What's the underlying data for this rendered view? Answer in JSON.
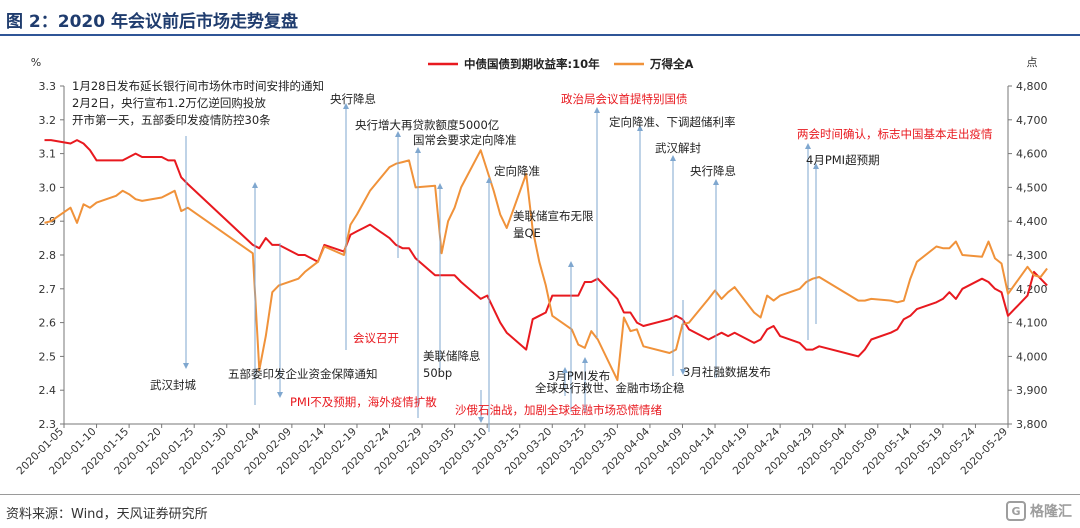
{
  "figure": {
    "title": "图 2：2020 年会议前后市场走势复盘",
    "source": "资料来源：Wind，天风证券研究所",
    "watermark": "格隆汇"
  },
  "colors": {
    "title": "#1f3c6e",
    "series_yield": "#e8191f",
    "series_wind": "#f0923a",
    "annotation_arrow": "#7fa7cf",
    "annotation_red": "#e8191f",
    "annotation_black": "#222222"
  },
  "chart_data": {
    "type": "line",
    "left_axis": {
      "unit": "%",
      "min": 2.3,
      "max": 3.3,
      "ticks": [
        "2.3",
        "2.4",
        "2.5",
        "2.6",
        "2.7",
        "2.8",
        "2.9",
        "3.0",
        "3.1",
        "3.2",
        "3.3"
      ]
    },
    "right_axis": {
      "unit": "点",
      "min": 3800,
      "max": 4800,
      "ticks": [
        "3,800",
        "3,900",
        "4,000",
        "4,100",
        "4,200",
        "4,300",
        "4,400",
        "4,500",
        "4,600",
        "4,700",
        "4,800"
      ]
    },
    "x_axis": {
      "start": "2020-01-05",
      "end": "2020-05-29",
      "ticks": [
        "2020-01-05",
        "2020-01-10",
        "2020-01-15",
        "2020-01-20",
        "2020-01-25",
        "2020-01-30",
        "2020-02-04",
        "2020-02-09",
        "2020-02-14",
        "2020-02-19",
        "2020-02-24",
        "2020-02-29",
        "2020-03-05",
        "2020-03-10",
        "2020-03-15",
        "2020-03-20",
        "2020-03-25",
        "2020-03-30",
        "2020-04-04",
        "2020-04-09",
        "2020-04-14",
        "2020-04-19",
        "2020-04-24",
        "2020-04-29",
        "2020-05-04",
        "2020-05-09",
        "2020-05-14",
        "2020-05-19",
        "2020-05-24",
        "2020-05-29"
      ]
    },
    "legend": "top-center",
    "series": [
      {
        "name": "中债国债到期收益率:10年",
        "axis": "left",
        "color": "#e8191f",
        "points": [
          [
            "2020-01-02",
            3.14
          ],
          [
            "2020-01-03",
            3.14
          ],
          [
            "2020-01-06",
            3.13
          ],
          [
            "2020-01-07",
            3.14
          ],
          [
            "2020-01-08",
            3.13
          ],
          [
            "2020-01-09",
            3.11
          ],
          [
            "2020-01-10",
            3.08
          ],
          [
            "2020-01-13",
            3.08
          ],
          [
            "2020-01-14",
            3.08
          ],
          [
            "2020-01-15",
            3.09
          ],
          [
            "2020-01-16",
            3.1
          ],
          [
            "2020-01-17",
            3.09
          ],
          [
            "2020-01-20",
            3.09
          ],
          [
            "2020-01-21",
            3.08
          ],
          [
            "2020-01-22",
            3.08
          ],
          [
            "2020-01-23",
            3.03
          ],
          [
            "2020-01-24",
            3.01
          ],
          [
            "2020-02-03",
            2.83
          ],
          [
            "2020-02-04",
            2.82
          ],
          [
            "2020-02-05",
            2.85
          ],
          [
            "2020-02-06",
            2.83
          ],
          [
            "2020-02-07",
            2.83
          ],
          [
            "2020-02-10",
            2.8
          ],
          [
            "2020-02-11",
            2.8
          ],
          [
            "2020-02-12",
            2.79
          ],
          [
            "2020-02-13",
            2.78
          ],
          [
            "2020-02-14",
            2.83
          ],
          [
            "2020-02-17",
            2.81
          ],
          [
            "2020-02-18",
            2.86
          ],
          [
            "2020-02-19",
            2.87
          ],
          [
            "2020-02-20",
            2.88
          ],
          [
            "2020-02-21",
            2.89
          ],
          [
            "2020-02-24",
            2.85
          ],
          [
            "2020-02-25",
            2.83
          ],
          [
            "2020-02-26",
            2.82
          ],
          [
            "2020-02-27",
            2.82
          ],
          [
            "2020-02-28",
            2.79
          ],
          [
            "2020-03-02",
            2.74
          ],
          [
            "2020-03-03",
            2.74
          ],
          [
            "2020-03-04",
            2.74
          ],
          [
            "2020-03-05",
            2.74
          ],
          [
            "2020-03-06",
            2.72
          ],
          [
            "2020-03-09",
            2.67
          ],
          [
            "2020-03-10",
            2.68
          ],
          [
            "2020-03-11",
            2.64
          ],
          [
            "2020-03-12",
            2.6
          ],
          [
            "2020-03-13",
            2.57
          ],
          [
            "2020-03-16",
            2.52
          ],
          [
            "2020-03-17",
            2.61
          ],
          [
            "2020-03-18",
            2.62
          ],
          [
            "2020-03-19",
            2.63
          ],
          [
            "2020-03-20",
            2.68
          ],
          [
            "2020-03-23",
            2.68
          ],
          [
            "2020-03-24",
            2.68
          ],
          [
            "2020-03-25",
            2.72
          ],
          [
            "2020-03-26",
            2.72
          ],
          [
            "2020-03-27",
            2.73
          ],
          [
            "2020-03-30",
            2.67
          ],
          [
            "2020-03-31",
            2.63
          ],
          [
            "2020-04-01",
            2.63
          ],
          [
            "2020-04-02",
            2.6
          ],
          [
            "2020-04-03",
            2.59
          ],
          [
            "2020-04-07",
            2.61
          ],
          [
            "2020-04-08",
            2.62
          ],
          [
            "2020-04-09",
            2.61
          ],
          [
            "2020-04-10",
            2.58
          ],
          [
            "2020-04-13",
            2.55
          ],
          [
            "2020-04-14",
            2.56
          ],
          [
            "2020-04-15",
            2.57
          ],
          [
            "2020-04-16",
            2.56
          ],
          [
            "2020-04-17",
            2.57
          ],
          [
            "2020-04-20",
            2.54
          ],
          [
            "2020-04-21",
            2.55
          ],
          [
            "2020-04-22",
            2.58
          ],
          [
            "2020-04-23",
            2.59
          ],
          [
            "2020-04-24",
            2.56
          ],
          [
            "2020-04-27",
            2.54
          ],
          [
            "2020-04-28",
            2.52
          ],
          [
            "2020-04-29",
            2.52
          ],
          [
            "2020-04-30",
            2.53
          ],
          [
            "2020-05-06",
            2.5
          ],
          [
            "2020-05-07",
            2.52
          ],
          [
            "2020-05-08",
            2.55
          ],
          [
            "2020-05-11",
            2.57
          ],
          [
            "2020-05-12",
            2.58
          ],
          [
            "2020-05-13",
            2.61
          ],
          [
            "2020-05-14",
            2.62
          ],
          [
            "2020-05-15",
            2.64
          ],
          [
            "2020-05-18",
            2.66
          ],
          [
            "2020-05-19",
            2.67
          ],
          [
            "2020-05-20",
            2.69
          ],
          [
            "2020-05-21",
            2.67
          ],
          [
            "2020-05-22",
            2.7
          ],
          [
            "2020-05-25",
            2.73
          ],
          [
            "2020-05-26",
            2.72
          ],
          [
            "2020-05-27",
            2.7
          ],
          [
            "2020-05-28",
            2.69
          ],
          [
            "2020-05-29",
            2.62
          ],
          [
            "2020-06-01",
            2.68
          ],
          [
            "2020-06-02",
            2.75
          ],
          [
            "2020-06-03",
            2.73
          ],
          [
            "2020-06-04",
            2.71
          ]
        ]
      },
      {
        "name": "万得全A",
        "axis": "right",
        "color": "#f0923a",
        "points": [
          [
            "2020-01-02",
            4395
          ],
          [
            "2020-01-03",
            4400
          ],
          [
            "2020-01-06",
            4440
          ],
          [
            "2020-01-07",
            4395
          ],
          [
            "2020-01-08",
            4450
          ],
          [
            "2020-01-09",
            4440
          ],
          [
            "2020-01-10",
            4455
          ],
          [
            "2020-01-13",
            4475
          ],
          [
            "2020-01-14",
            4490
          ],
          [
            "2020-01-15",
            4480
          ],
          [
            "2020-01-16",
            4465
          ],
          [
            "2020-01-17",
            4460
          ],
          [
            "2020-01-20",
            4470
          ],
          [
            "2020-01-21",
            4480
          ],
          [
            "2020-01-22",
            4490
          ],
          [
            "2020-01-23",
            4430
          ],
          [
            "2020-01-24",
            4440
          ],
          [
            "2020-02-03",
            4305
          ],
          [
            "2020-02-04",
            3960
          ],
          [
            "2020-02-05",
            4060
          ],
          [
            "2020-02-06",
            4190
          ],
          [
            "2020-02-07",
            4210
          ],
          [
            "2020-02-10",
            4230
          ],
          [
            "2020-02-11",
            4250
          ],
          [
            "2020-02-12",
            4265
          ],
          [
            "2020-02-13",
            4280
          ],
          [
            "2020-02-14",
            4325
          ],
          [
            "2020-02-17",
            4300
          ],
          [
            "2020-02-18",
            4390
          ],
          [
            "2020-02-19",
            4420
          ],
          [
            "2020-02-20",
            4455
          ],
          [
            "2020-02-21",
            4490
          ],
          [
            "2020-02-24",
            4560
          ],
          [
            "2020-02-25",
            4570
          ],
          [
            "2020-02-26",
            4575
          ],
          [
            "2020-02-27",
            4580
          ],
          [
            "2020-02-28",
            4500
          ],
          [
            "2020-03-02",
            4505
          ],
          [
            "2020-03-03",
            4305
          ],
          [
            "2020-03-04",
            4400
          ],
          [
            "2020-03-05",
            4440
          ],
          [
            "2020-03-06",
            4500
          ],
          [
            "2020-03-09",
            4610
          ],
          [
            "2020-03-10",
            4550
          ],
          [
            "2020-03-11",
            4490
          ],
          [
            "2020-03-12",
            4420
          ],
          [
            "2020-03-13",
            4380
          ],
          [
            "2020-03-16",
            4540
          ],
          [
            "2020-03-17",
            4375
          ],
          [
            "2020-03-18",
            4280
          ],
          [
            "2020-03-19",
            4210
          ],
          [
            "2020-03-20",
            4120
          ],
          [
            "2020-03-23",
            4080
          ],
          [
            "2020-03-24",
            4035
          ],
          [
            "2020-03-25",
            4025
          ],
          [
            "2020-03-26",
            4075
          ],
          [
            "2020-03-27",
            4050
          ],
          [
            "2020-03-30",
            3930
          ],
          [
            "2020-03-31",
            4115
          ],
          [
            "2020-04-01",
            4075
          ],
          [
            "2020-04-02",
            4080
          ],
          [
            "2020-04-03",
            4030
          ],
          [
            "2020-04-07",
            4010
          ],
          [
            "2020-04-08",
            4020
          ],
          [
            "2020-04-09",
            4095
          ],
          [
            "2020-04-10",
            4100
          ],
          [
            "2020-04-13",
            4170
          ],
          [
            "2020-04-14",
            4195
          ],
          [
            "2020-04-15",
            4170
          ],
          [
            "2020-04-16",
            4190
          ],
          [
            "2020-04-17",
            4205
          ],
          [
            "2020-04-20",
            4130
          ],
          [
            "2020-04-21",
            4115
          ],
          [
            "2020-04-22",
            4180
          ],
          [
            "2020-04-23",
            4165
          ],
          [
            "2020-04-24",
            4180
          ],
          [
            "2020-04-27",
            4200
          ],
          [
            "2020-04-28",
            4220
          ],
          [
            "2020-04-29",
            4230
          ],
          [
            "2020-04-30",
            4235
          ],
          [
            "2020-05-06",
            4165
          ],
          [
            "2020-05-07",
            4165
          ],
          [
            "2020-05-08",
            4170
          ],
          [
            "2020-05-11",
            4165
          ],
          [
            "2020-05-12",
            4160
          ],
          [
            "2020-05-13",
            4165
          ],
          [
            "2020-05-14",
            4230
          ],
          [
            "2020-05-15",
            4280
          ],
          [
            "2020-05-18",
            4325
          ],
          [
            "2020-05-19",
            4320
          ],
          [
            "2020-05-20",
            4320
          ],
          [
            "2020-05-21",
            4340
          ],
          [
            "2020-05-22",
            4300
          ],
          [
            "2020-05-25",
            4295
          ],
          [
            "2020-05-26",
            4340
          ],
          [
            "2020-05-27",
            4290
          ],
          [
            "2020-05-28",
            4275
          ],
          [
            "2020-05-29",
            4185
          ],
          [
            "2020-06-01",
            4265
          ],
          [
            "2020-06-02",
            4240
          ],
          [
            "2020-06-03",
            4235
          ],
          [
            "2020-06-04",
            4260
          ]
        ]
      }
    ],
    "annotations": [
      {
        "lines": [
          "1月28日发布延长银行间市场休市时间安排的通知",
          "2月2日，央行宣布1.2万亿逆回购投放",
          "开市第一天，五部委印发疫情防控30条"
        ],
        "color": "black",
        "anchor": "top",
        "date": "2020-02-04"
      },
      {
        "lines": [
          "武汉封城"
        ],
        "color": "black",
        "anchor": "bottom",
        "date": "2020-01-23"
      },
      {
        "lines": [
          "五部委印发企业资金保障通知"
        ],
        "color": "black",
        "anchor": "bottom",
        "date": "2020-02-08"
      },
      {
        "lines": [
          "央行降息"
        ],
        "color": "black",
        "anchor": "top",
        "date": "2020-02-20"
      },
      {
        "lines": [
          "央行增大再贷款额度5000亿"
        ],
        "color": "black",
        "anchor": "top",
        "date": "2020-02-26"
      },
      {
        "lines": [
          "国常会要求定向降准"
        ],
        "color": "black",
        "anchor": "top",
        "date": "2020-03-02"
      },
      {
        "lines": [
          "会议召开"
        ],
        "color": "red",
        "anchor": "middle",
        "date": "2020-02-29"
      },
      {
        "lines": [
          "PMI不及预期，海外疫情扩散"
        ],
        "color": "red",
        "anchor": "bottom",
        "date": "2020-03-01"
      },
      {
        "lines": [
          "美联储降息",
          "50bp"
        ],
        "color": "black",
        "anchor": "bottom",
        "date": "2020-03-03"
      },
      {
        "lines": [
          "定向降准"
        ],
        "color": "black",
        "anchor": "top",
        "date": "2020-03-13"
      },
      {
        "lines": [
          "美联储宣布无限",
          "量QE"
        ],
        "color": "black",
        "anchor": "top",
        "date": "2020-03-23"
      },
      {
        "lines": [
          "沙俄石油战，加剧全球金融市场恐慌情绪"
        ],
        "color": "red",
        "anchor": "bottom",
        "date": "2020-03-09"
      },
      {
        "lines": [
          "3月PMI发布"
        ],
        "color": "black",
        "anchor": "bottom",
        "date": "2020-03-31"
      },
      {
        "lines": [
          "全球央行救世、金融市场企稳"
        ],
        "color": "black",
        "anchor": "bottom",
        "date": "2020-03-24"
      },
      {
        "lines": [
          "政治局会议首提特别国债"
        ],
        "color": "red",
        "anchor": "top",
        "date": "2020-03-27"
      },
      {
        "lines": [
          "定向降准、下调超储利率"
        ],
        "color": "black",
        "anchor": "top",
        "date": "2020-04-03"
      },
      {
        "lines": [
          "武汉解封"
        ],
        "color": "black",
        "anchor": "top",
        "date": "2020-04-08"
      },
      {
        "lines": [
          "央行降息"
        ],
        "color": "black",
        "anchor": "top",
        "date": "2020-04-15"
      },
      {
        "lines": [
          "3月社融数据发布"
        ],
        "color": "black",
        "anchor": "bottom",
        "date": "2020-04-10"
      },
      {
        "lines": [
          "两会时间确认，标志中国基本走出疫情"
        ],
        "color": "red",
        "anchor": "top",
        "date": "2020-04-29"
      },
      {
        "lines": [
          "4月PMI超预期"
        ],
        "color": "black",
        "anchor": "top",
        "date": "2020-04-30"
      }
    ]
  }
}
